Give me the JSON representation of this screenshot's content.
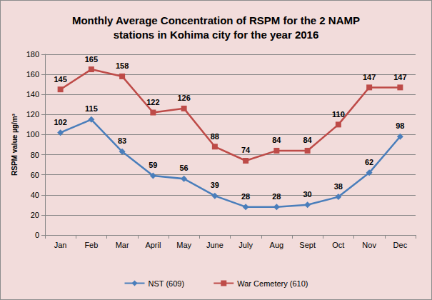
{
  "chart_data": {
    "type": "line",
    "title": "Monthly Average Concentration of RSPM for the 2 NAMP\nstations in Kohima city for the year 2016",
    "y_label": "RSPM value µg/m³",
    "categories": [
      "Jan",
      "Feb",
      "Mar",
      "April",
      "May",
      "June",
      "July",
      "Aug",
      "Sept",
      "Oct",
      "Nov",
      "Dec"
    ],
    "series": [
      {
        "name": "NST (609)",
        "color": "#4a7ebb",
        "marker": "diamond",
        "line_style": "solid",
        "values": [
          102,
          115,
          83,
          59,
          56,
          39,
          28,
          28,
          30,
          38,
          62,
          98
        ]
      },
      {
        "name": "War Cemetery (610)",
        "color": "#be4b48",
        "marker": "square",
        "line_style": "solid",
        "values": [
          145,
          165,
          158,
          122,
          126,
          88,
          74,
          84,
          84,
          110,
          147,
          147
        ]
      }
    ],
    "ylim": [
      0,
      180
    ],
    "yticks": [
      0,
      20,
      40,
      60,
      80,
      100,
      120,
      140,
      160,
      180
    ],
    "grid": true,
    "legend": "bottom",
    "data_labels": true
  }
}
